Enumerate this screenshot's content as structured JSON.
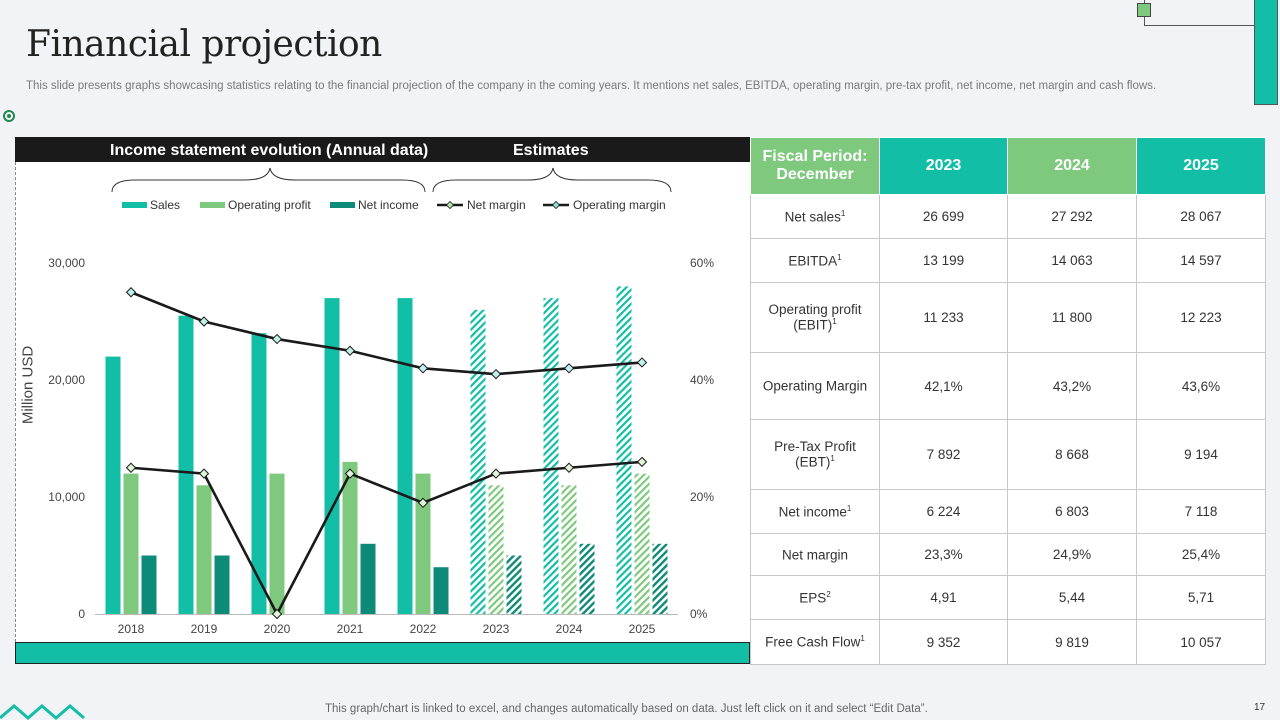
{
  "slide": {
    "title": "Financial projection",
    "subtitle": "This slide presents graphs showcasing statistics relating to the financial projection of the company in the coming years. It mentions net sales, EBITDA,  operating margin, pre-tax profit,  net income, net margin and cash flows.",
    "footer_note": "This graph/chart is linked to excel,  and changes automatically based on data. Just left click on it and select “Edit Data”.",
    "page_number": "17"
  },
  "chart_header": {
    "left": "Income statement evolution (Annual data)",
    "right": "Estimates"
  },
  "colors": {
    "teal": "#12bfa6",
    "green": "#7fc97f",
    "dark_teal": "#0e8a78",
    "line": "#1a1a1a"
  },
  "chart_data": {
    "type": "bar",
    "title": "Income statement evolution (Annual data)",
    "ylabel": "Million USD",
    "ylim": [
      0,
      30000
    ],
    "y2lim": [
      0,
      60
    ],
    "yticks": [
      "0",
      "10,000",
      "20,000",
      "30,000"
    ],
    "y2ticks": [
      "0%",
      "20%",
      "40%",
      "60%"
    ],
    "categories": [
      "2018",
      "2019",
      "2020",
      "2021",
      "2022",
      "2023",
      "2024",
      "2025"
    ],
    "estimate_from_index": 5,
    "bar_series": [
      {
        "name": "Sales",
        "color": "#12bfa6",
        "values": [
          22000,
          25500,
          24000,
          27000,
          27000,
          26000,
          27000,
          28000
        ]
      },
      {
        "name": "Operating profit",
        "color": "#7fc97f",
        "values": [
          12000,
          11000,
          12000,
          13000,
          12000,
          11000,
          11000,
          12000
        ]
      },
      {
        "name": "Net income",
        "color": "#0e8a78",
        "values": [
          5000,
          5000,
          0,
          6000,
          4000,
          5000,
          6000,
          6000
        ]
      }
    ],
    "line_series": [
      {
        "name": "Net margin",
        "axis": "right",
        "values": [
          25,
          24,
          0,
          24,
          19,
          24,
          25,
          26
        ]
      },
      {
        "name": "Operating margin",
        "axis": "right",
        "values": [
          55,
          50,
          47,
          45,
          42,
          41,
          42,
          43
        ]
      }
    ]
  },
  "table": {
    "corner": "Fiscal Period: December",
    "years": [
      "2023",
      "2024",
      "2025"
    ],
    "rows": [
      {
        "label": "Net sales",
        "sup": "1",
        "values": [
          "26 699",
          "27 292",
          "28 067"
        ]
      },
      {
        "label": "EBITDA",
        "sup": "1",
        "values": [
          "13 199",
          "14 063",
          "14 597"
        ]
      },
      {
        "label": "Operating profit (EBIT)",
        "sup": "1",
        "values": [
          "11 233",
          "11 800",
          "12 223"
        ]
      },
      {
        "label": "Operating Margin",
        "sup": "",
        "values": [
          "42,1%",
          "43,2%",
          "43,6%"
        ]
      },
      {
        "label": "Pre-Tax Profit (EBT)",
        "sup": "1",
        "values": [
          "7 892",
          "8 668",
          "9 194"
        ]
      },
      {
        "label": "Net income",
        "sup": "1",
        "values": [
          "6 224",
          "6 803",
          "7 118"
        ]
      },
      {
        "label": "Net margin",
        "sup": "",
        "values": [
          "23,3%",
          "24,9%",
          "25,4%"
        ]
      },
      {
        "label": "EPS",
        "sup": "2",
        "values": [
          "4,91",
          "5,44",
          "5,71"
        ]
      },
      {
        "label": "Free Cash Flow",
        "sup": "1",
        "values": [
          "9 352",
          "9 819",
          "10 057"
        ]
      }
    ]
  }
}
